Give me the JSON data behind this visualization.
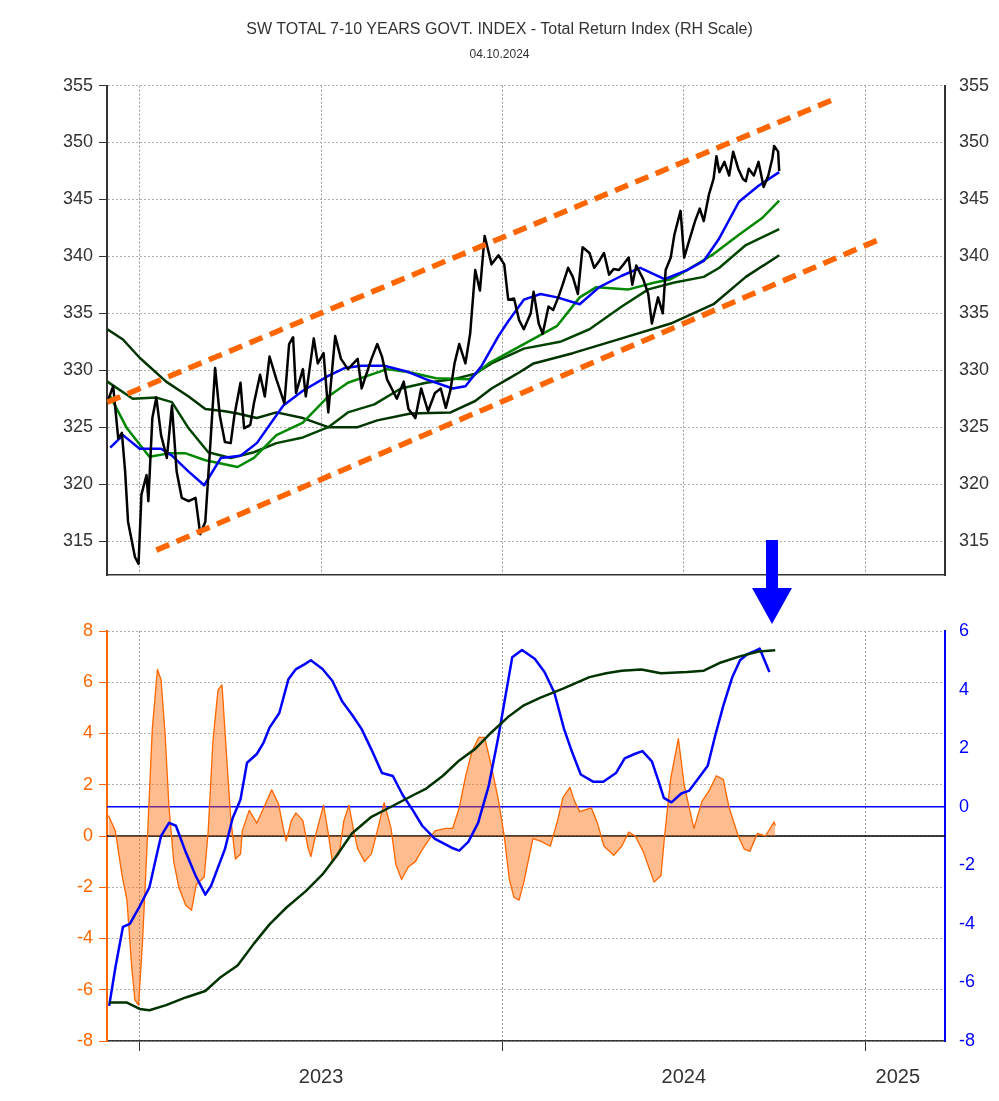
{
  "chart_data": [
    {
      "type": "line",
      "title": "SW TOTAL 7-10 YEARS GOVT. INDEX - Total Return Index (RH Scale)",
      "subtitle": "04.10.2024",
      "xlim": [
        2022.91,
        2025.22
      ],
      "xticks": [
        {
          "value": 2023,
          "label": null
        },
        {
          "value": 2023.5,
          "label": null
        },
        {
          "value": 2024,
          "label": null
        },
        {
          "value": 2024.5,
          "label": null
        },
        {
          "value": 2025,
          "label": null
        }
      ],
      "ylim": [
        312,
        355
      ],
      "yticks": [
        315,
        320,
        325,
        330,
        335,
        340,
        345,
        350,
        355
      ],
      "y2lim": [
        312,
        355
      ],
      "y2ticks": [
        315,
        320,
        325,
        330,
        335,
        340,
        345,
        350,
        355
      ],
      "grid": true,
      "tick_labels": "y",
      "legend": false,
      "marker": "none",
      "series": [
        {
          "color": "#003300",
          "x": [
            2022.911,
            2022.954,
            2023.0,
            2023.073,
            2023.135,
            2023.181,
            2023.235,
            2023.27,
            2023.323,
            2023.377,
            2023.45,
            2023.52,
            2023.601,
            2023.655,
            2023.747,
            2023.857,
            2023.925,
            2023.97,
            2024.046,
            2024.086,
            2024.194,
            2024.329,
            2024.464,
            2024.582,
            2024.671,
            2024.763
          ],
          "values": [
            333.6,
            332.7,
            331.1,
            329.0,
            327.7,
            326.6,
            326.4,
            326.2,
            325.8,
            326.3,
            325.8,
            325.0,
            325.0,
            325.6,
            326.2,
            326.3,
            327.3,
            328.4,
            329.8,
            330.6,
            331.5,
            332.8,
            334.1,
            335.8,
            338.2,
            340.1
          ]
        },
        {
          "color": "#004400",
          "x": [
            2022.911,
            2022.981,
            2023.046,
            2023.089,
            2023.135,
            2023.189,
            2023.251,
            2023.315,
            2023.377,
            2023.45,
            2023.52,
            2023.574,
            2023.647,
            2023.72,
            2023.79,
            2023.863,
            2023.925,
            2023.97,
            2024.059,
            2024.159,
            2024.24,
            2024.329,
            2024.402,
            2024.474,
            2024.555,
            2024.598,
            2024.671,
            2024.763
          ],
          "values": [
            329.0,
            327.5,
            327.6,
            327.2,
            324.9,
            322.8,
            322.3,
            322.8,
            323.6,
            324.1,
            325.0,
            326.3,
            327.0,
            328.4,
            328.9,
            329.2,
            329.7,
            330.6,
            331.9,
            332.5,
            333.6,
            335.6,
            337.1,
            337.7,
            338.2,
            339.0,
            341.0,
            342.4
          ]
        },
        {
          "color": "#008800",
          "x": [
            2022.919,
            2022.965,
            2023.027,
            2023.081,
            2023.127,
            2023.181,
            2023.27,
            2023.315,
            2023.377,
            2023.45,
            2023.52,
            2023.574,
            2023.628,
            2023.682,
            2023.747,
            2023.817,
            2023.908,
            2023.962,
            2024.059,
            2024.151,
            2024.213,
            2024.259,
            2024.348,
            2024.42,
            2024.464,
            2024.509,
            2024.582,
            2024.652,
            2024.717,
            2024.763
          ],
          "values": [
            327.7,
            324.9,
            322.4,
            322.7,
            322.7,
            322.1,
            321.5,
            322.3,
            324.3,
            325.4,
            327.7,
            328.9,
            329.5,
            330.1,
            329.8,
            329.3,
            329.2,
            330.6,
            332.3,
            333.9,
            336.4,
            337.3,
            337.1,
            337.7,
            338.0,
            338.8,
            340.2,
            341.9,
            343.4,
            344.9
          ]
        },
        {
          "color": "#0000ff",
          "x": [
            2022.919,
            2022.954,
            2023.0,
            2023.059,
            2023.089,
            2023.135,
            2023.178,
            2023.224,
            2023.278,
            2023.323,
            2023.396,
            2023.45,
            2023.52,
            2023.566,
            2023.612,
            2023.674,
            2023.736,
            2023.79,
            2023.863,
            2023.898,
            2023.943,
            2023.989,
            2024.016,
            2024.059,
            2024.105,
            2024.151,
            2024.213,
            2024.267,
            2024.329,
            2024.38,
            2024.447,
            2024.509,
            2024.555,
            2024.598,
            2024.652,
            2024.706,
            2024.763
          ],
          "values": [
            323.2,
            324.3,
            323.1,
            323.1,
            322.5,
            321.1,
            319.9,
            322.3,
            322.5,
            323.6,
            326.9,
            328.2,
            329.5,
            330.2,
            330.4,
            330.4,
            329.9,
            329.2,
            328.4,
            328.6,
            330.4,
            333.0,
            334.3,
            336.2,
            336.7,
            336.4,
            335.8,
            337.3,
            338.3,
            339.0,
            338.0,
            338.8,
            339.6,
            341.6,
            344.8,
            346.2,
            347.4
          ]
        },
        {
          "color": "#000000",
          "x": [
            2022.911,
            2022.927,
            2022.941,
            2022.951,
            2022.96,
            2022.968,
            2022.987,
            2022.997,
            2023.005,
            2023.019,
            2023.024,
            2023.035,
            2023.046,
            2023.059,
            2023.075,
            2023.089,
            2023.102,
            2023.116,
            2023.135,
            2023.154,
            2023.167,
            2023.181,
            2023.194,
            2023.208,
            2023.221,
            2023.235,
            2023.251,
            2023.261,
            2023.278,
            2023.288,
            2023.305,
            2023.315,
            2023.332,
            2023.345,
            2023.358,
            2023.377,
            2023.399,
            2023.412,
            2023.423,
            2023.431,
            2023.45,
            2023.458,
            2023.48,
            2023.491,
            2023.507,
            2023.52,
            2023.539,
            2023.555,
            2023.574,
            2023.601,
            2023.612,
            2023.639,
            2023.655,
            2023.668,
            2023.682,
            2023.709,
            2023.728,
            2023.741,
            2023.76,
            2023.776,
            2023.795,
            2023.814,
            2023.83,
            2023.844,
            2023.857,
            2023.868,
            2023.881,
            2023.898,
            2023.911,
            2023.925,
            2023.938,
            2023.951,
            2023.97,
            2023.989,
            2024.005,
            2024.016,
            2024.032,
            2024.046,
            2024.059,
            2024.078,
            2024.086,
            2024.1,
            2024.111,
            2024.127,
            2024.14,
            2024.154,
            2024.167,
            2024.181,
            2024.194,
            2024.208,
            2024.221,
            2024.24,
            2024.253,
            2024.267,
            2024.28,
            2024.294,
            2024.307,
            2024.321,
            2024.334,
            2024.348,
            2024.358,
            2024.369,
            2024.388,
            2024.402,
            2024.412,
            2024.429,
            2024.442,
            2024.45,
            2024.464,
            2024.474,
            2024.491,
            2024.501,
            2024.515,
            2024.531,
            2024.544,
            2024.555,
            2024.569,
            2024.582,
            2024.59,
            2024.598,
            2024.612,
            2024.625,
            2024.636,
            2024.65,
            2024.663,
            2024.671,
            2024.679,
            2024.693,
            2024.706,
            2024.72,
            2024.733,
            2024.744,
            2024.749,
            2024.76,
            2024.763
          ],
          "values": [
            327.2,
            328.6,
            324.0,
            324.5,
            321.1,
            316.7,
            313.6,
            313.0,
            319.1,
            320.8,
            318.5,
            325.8,
            327.6,
            324.3,
            322.3,
            326.9,
            321.1,
            318.8,
            318.5,
            318.8,
            315.6,
            316.7,
            323.1,
            330.2,
            326.0,
            323.7,
            323.6,
            326.0,
            328.9,
            324.9,
            325.2,
            327.1,
            329.6,
            327.7,
            331.2,
            329.2,
            327.1,
            332.3,
            332.9,
            328.0,
            330.1,
            327.7,
            332.8,
            330.6,
            331.5,
            326.3,
            333.0,
            331.0,
            330.1,
            331.0,
            328.4,
            331.0,
            332.3,
            331.2,
            329.2,
            327.5,
            329.0,
            326.6,
            325.8,
            328.4,
            326.4,
            328.0,
            328.4,
            326.7,
            328.3,
            330.6,
            332.3,
            330.6,
            333.2,
            338.8,
            337.0,
            341.8,
            339.3,
            340.1,
            339.3,
            336.2,
            336.3,
            334.4,
            333.6,
            335.0,
            336.9,
            334.1,
            333.2,
            335.6,
            335.3,
            336.4,
            337.6,
            339.0,
            338.2,
            336.7,
            340.8,
            340.3,
            339.0,
            339.6,
            340.3,
            338.4,
            338.9,
            338.8,
            339.3,
            339.9,
            337.5,
            339.2,
            338.0,
            336.7,
            334.1,
            336.4,
            335.0,
            338.8,
            339.9,
            341.9,
            344.0,
            339.9,
            341.4,
            343.1,
            344.2,
            343.1,
            345.4,
            346.8,
            348.8,
            347.4,
            348.3,
            347.1,
            349.2,
            347.7,
            346.8,
            346.6,
            347.7,
            347.1,
            348.3,
            346.1,
            347.1,
            348.6,
            349.7,
            349.2,
            347.5
          ]
        },
        {
          "color": "#ff6600",
          "line_style": "dashed",
          "x": [
            2022.911,
            2024.914
          ],
          "values": [
            327.2,
            353.8
          ]
        },
        {
          "color": "#ff6600",
          "line_style": "dashed",
          "x": [
            2023.046,
            2025.04
          ],
          "values": [
            314.2,
            341.5
          ]
        }
      ]
    },
    {
      "type": "line",
      "xlim": [
        2022.91,
        2025.22
      ],
      "xticks": [
        {
          "value": 2023,
          "label": null
        },
        {
          "value": 2023.5,
          "label": "2023"
        },
        {
          "value": 2024,
          "label": null
        },
        {
          "value": 2024.5,
          "label": "2024"
        },
        {
          "value": 2025,
          "label": null
        },
        {
          "value": 2025.09,
          "label": "2025"
        }
      ],
      "ylim": [
        -8,
        8
      ],
      "yticks": [
        -8,
        -6,
        -4,
        -2,
        0,
        2,
        4,
        6,
        8
      ],
      "y2lim": [
        -8,
        6
      ],
      "y2ticks": [
        -8,
        -6,
        -4,
        -2,
        0,
        2,
        4,
        6
      ],
      "grid": true,
      "legend": false,
      "marker": "none",
      "ref_lines": [
        {
          "axis": "y",
          "value": 0,
          "color": "#000000"
        },
        {
          "axis": "y2",
          "value": 0,
          "color": "#0000ff"
        }
      ],
      "series": [
        {
          "type": "area",
          "color": "#ff6600",
          "x": [
            2022.914,
            2022.933,
            2022.951,
            2022.965,
            2022.978,
            2022.987,
            2022.997,
            2023.008,
            2023.022,
            2023.035,
            2023.049,
            2023.059,
            2023.07,
            2023.081,
            2023.094,
            2023.108,
            2023.127,
            2023.143,
            2023.156,
            2023.178,
            2023.189,
            2023.202,
            2023.216,
            2023.227,
            2023.237,
            2023.251,
            2023.264,
            2023.278,
            2023.283,
            2023.302,
            2023.315,
            2023.323,
            2023.342,
            2023.364,
            2023.383,
            2023.396,
            2023.404,
            2023.418,
            2023.431,
            2023.45,
            2023.464,
            2023.472,
            2023.488,
            2023.507,
            2023.52,
            2023.531,
            2023.55,
            2023.563,
            2023.577,
            2023.59,
            2023.601,
            2023.62,
            2023.639,
            2023.655,
            2023.674,
            2023.693,
            2023.706,
            2023.722,
            2023.741,
            2023.76,
            2023.776,
            2023.79,
            2023.814,
            2023.844,
            2023.863,
            2023.881,
            2023.898,
            2023.916,
            2023.935,
            2023.951,
            2023.97,
            2023.989,
            2024.005,
            2024.019,
            2024.032,
            2024.046,
            2024.059,
            2024.084,
            2024.105,
            2024.132,
            2024.151,
            2024.167,
            2024.186,
            2024.199,
            2024.213,
            2024.245,
            2024.261,
            2024.28,
            2024.307,
            2024.329,
            2024.348,
            2024.366,
            2024.388,
            2024.418,
            2024.437,
            2024.447,
            2024.464,
            2024.485,
            2024.501,
            2024.515,
            2024.528,
            2024.55,
            2024.569,
            2024.59,
            2024.609,
            2024.625,
            2024.65,
            2024.666,
            2024.682,
            2024.703,
            2024.725,
            2024.749,
            2024.752
          ],
          "values": [
            0.8,
            0.2,
            -1.5,
            -2.5,
            -5.1,
            -6.4,
            -6.6,
            -4.1,
            0.1,
            4.2,
            6.5,
            6.1,
            4.0,
            1.1,
            -1.0,
            -2.0,
            -2.7,
            -2.9,
            -1.9,
            -1.6,
            0.2,
            3.7,
            5.7,
            5.9,
            3.7,
            0.7,
            -0.9,
            -0.7,
            0.2,
            1.0,
            0.7,
            0.5,
            1.1,
            1.8,
            1.25,
            0.3,
            -0.2,
            0.6,
            0.9,
            0.6,
            -0.45,
            -0.8,
            0.2,
            1.2,
            0.1,
            -1.0,
            -0.7,
            0.6,
            1.2,
            0.2,
            -0.5,
            -1.0,
            -0.7,
            0.2,
            1.3,
            0.3,
            -1.1,
            -1.7,
            -1.2,
            -1.0,
            -0.6,
            -0.3,
            0.2,
            0.3,
            0.3,
            1.1,
            2.3,
            3.3,
            3.85,
            3.85,
            2.7,
            1.4,
            0.0,
            -1.7,
            -2.4,
            -2.5,
            -1.8,
            -0.1,
            -0.2,
            -0.4,
            0.55,
            1.5,
            1.9,
            1.35,
            0.95,
            1.1,
            0.55,
            -0.4,
            -0.75,
            -0.4,
            0.15,
            0.0,
            -0.6,
            -1.8,
            -1.55,
            0.0,
            2.25,
            3.8,
            2.0,
            1.1,
            0.3,
            1.35,
            1.75,
            2.35,
            2.2,
            1.1,
            0.0,
            -0.5,
            -0.6,
            0.1,
            0.0,
            0.55,
            0.4
          ]
        },
        {
          "color": "#0000ff",
          "axis": "y2",
          "x": [
            2022.916,
            2022.933,
            2022.954,
            2022.973,
            2023.0,
            2023.027,
            2023.046,
            2023.059,
            2023.081,
            2023.1,
            2023.127,
            2023.154,
            2023.181,
            2023.197,
            2023.235,
            2023.256,
            2023.278,
            2023.296,
            2023.323,
            2023.342,
            2023.358,
            2023.385,
            2023.41,
            2023.431,
            2023.453,
            2023.472,
            2023.504,
            2023.531,
            2023.558,
            2023.585,
            2023.612,
            2023.639,
            2023.668,
            2023.698,
            2023.725,
            2023.752,
            2023.779,
            2023.814,
            2023.86,
            2023.881,
            2023.906,
            2023.933,
            2023.962,
            2023.989,
            2024.027,
            2024.054,
            2024.089,
            2024.116,
            2024.143,
            2024.17,
            2024.191,
            2024.216,
            2024.251,
            2024.278,
            2024.313,
            2024.337,
            2024.364,
            2024.386,
            2024.412,
            2024.431,
            2024.445,
            2024.466,
            2024.493,
            2024.515,
            2024.539,
            2024.566,
            2024.587,
            2024.609,
            2024.633,
            2024.655,
            2024.674,
            2024.693,
            2024.709,
            2024.736
          ],
          "values": [
            -6.8,
            -5.5,
            -4.1,
            -4.0,
            -3.4,
            -2.75,
            -1.7,
            -1.0,
            -0.55,
            -0.65,
            -1.55,
            -2.35,
            -3.0,
            -2.7,
            -1.45,
            -0.4,
            0.25,
            1.5,
            1.8,
            2.2,
            2.7,
            3.2,
            4.35,
            4.7,
            4.85,
            5.0,
            4.7,
            4.3,
            3.6,
            3.15,
            2.65,
            1.95,
            1.15,
            1.05,
            0.4,
            -0.1,
            -0.65,
            -1.1,
            -1.4,
            -1.5,
            -1.2,
            -0.55,
            0.7,
            2.4,
            5.1,
            5.35,
            5.05,
            4.6,
            3.9,
            2.65,
            1.9,
            1.1,
            0.85,
            0.85,
            1.15,
            1.65,
            1.8,
            1.9,
            1.55,
            0.85,
            0.3,
            0.15,
            0.45,
            0.55,
            0.95,
            1.4,
            2.45,
            3.45,
            4.4,
            5.0,
            5.2,
            5.3,
            5.4,
            4.6
          ]
        },
        {
          "color": "#003300",
          "x": [
            2022.916,
            2022.965,
            2023.0,
            2023.027,
            2023.073,
            2023.127,
            2023.181,
            2023.224,
            2023.27,
            2023.315,
            2023.358,
            2023.404,
            2023.458,
            2023.504,
            2023.539,
            2023.585,
            2023.639,
            2023.701,
            2023.755,
            2023.79,
            2023.836,
            2023.881,
            2023.925,
            2023.97,
            2024.016,
            2024.059,
            2024.105,
            2024.167,
            2024.24,
            2024.286,
            2024.329,
            2024.383,
            2024.437,
            2024.509,
            2024.555,
            2024.598,
            2024.652,
            2024.706,
            2024.752
          ],
          "values": [
            -6.5,
            -6.5,
            -6.75,
            -6.8,
            -6.6,
            -6.3,
            -6.05,
            -5.5,
            -5.05,
            -4.2,
            -3.45,
            -2.8,
            -2.15,
            -1.5,
            -0.85,
            0.1,
            0.75,
            1.2,
            1.6,
            1.85,
            2.35,
            2.95,
            3.4,
            4.05,
            4.65,
            5.1,
            5.4,
            5.75,
            6.2,
            6.35,
            6.45,
            6.5,
            6.35,
            6.4,
            6.45,
            6.75,
            7.0,
            7.2,
            7.25
          ]
        }
      ]
    }
  ]
}
